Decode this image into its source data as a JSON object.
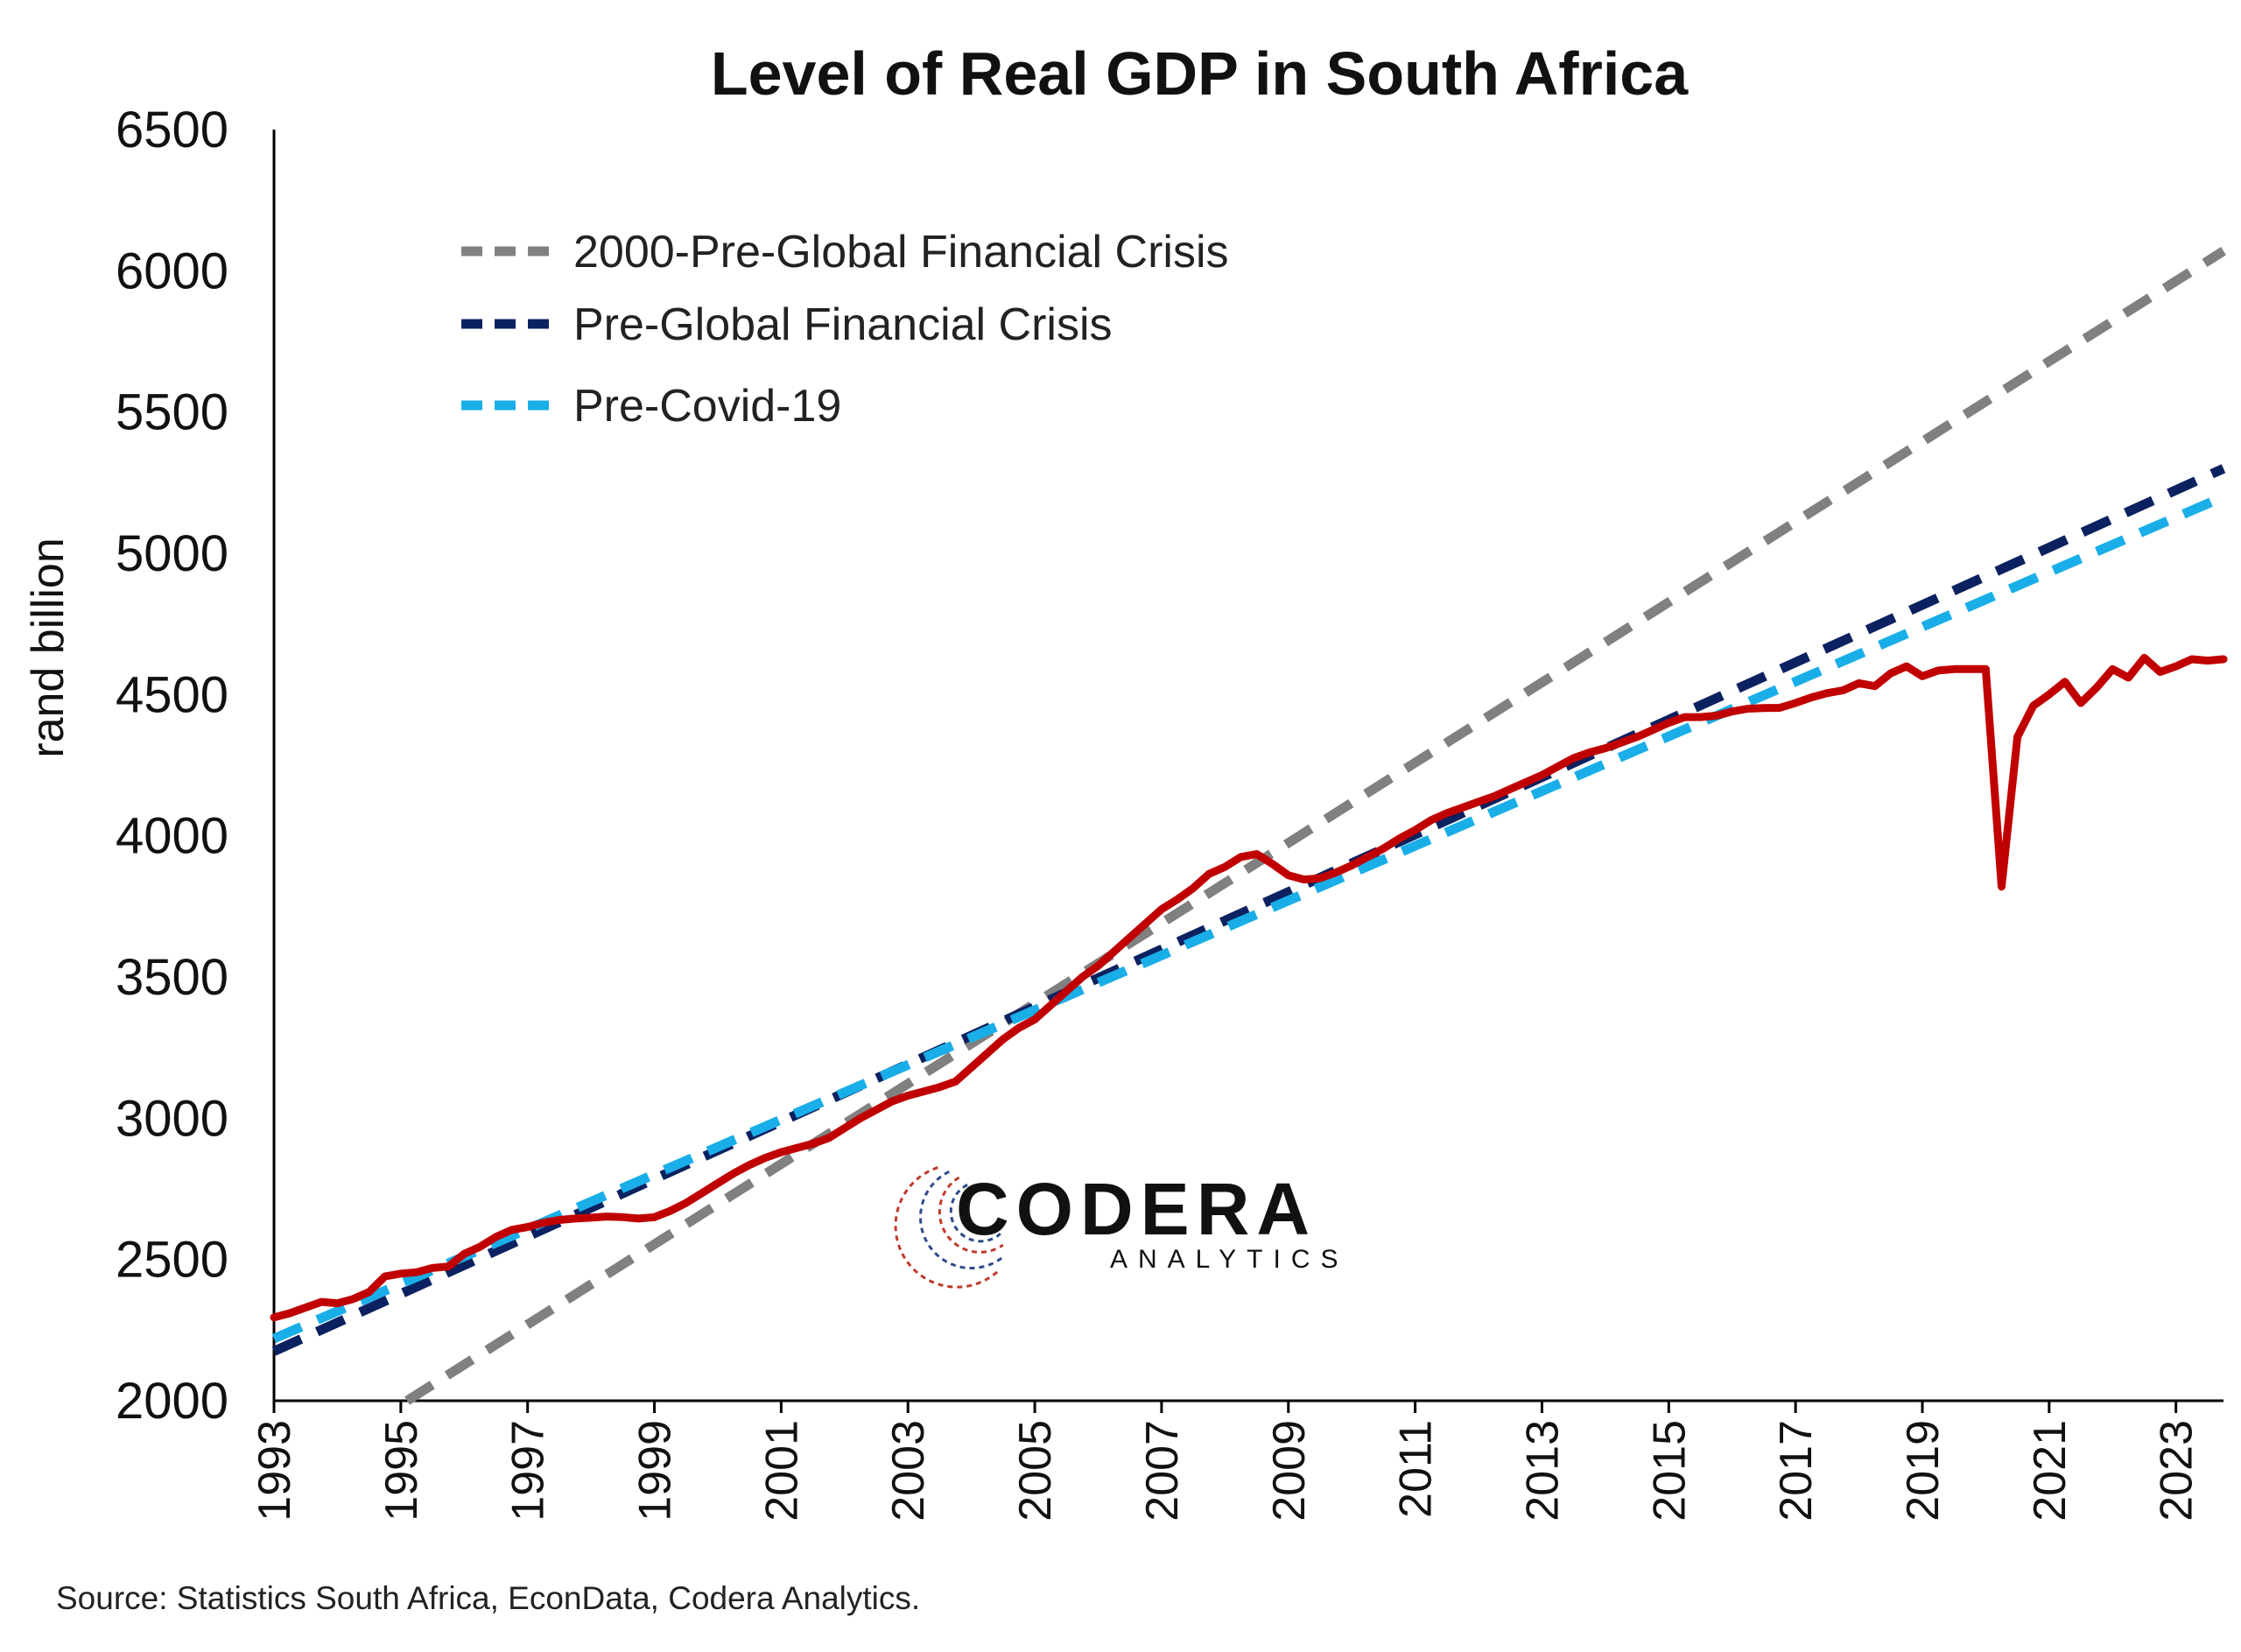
{
  "chart_data": {
    "type": "line",
    "title": "Level of Real GDP in South Africa",
    "xlabel": "",
    "ylabel": "rand billion",
    "xlim": [
      1993.0,
      2023.75
    ],
    "ylim": [
      2000,
      6500
    ],
    "yticks": [
      2000,
      2500,
      3000,
      3500,
      4000,
      4500,
      5000,
      5500,
      6000,
      6500
    ],
    "xticks": [
      "1993",
      "1995",
      "1997",
      "1999",
      "2001",
      "2003",
      "2005",
      "2007",
      "2009",
      "2011",
      "2013",
      "2015",
      "2017",
      "2019",
      "2021",
      "2023"
    ],
    "legend_position": "top-left",
    "grid": false,
    "series": [
      {
        "name": "",
        "style": "solid",
        "color": "#c00000",
        "points": [
          [
            1993.0,
            2295
          ],
          [
            1993.25,
            2310
          ],
          [
            1993.5,
            2330
          ],
          [
            1993.75,
            2350
          ],
          [
            1994.0,
            2345
          ],
          [
            1994.25,
            2360
          ],
          [
            1994.5,
            2385
          ],
          [
            1994.75,
            2440
          ],
          [
            1995.0,
            2450
          ],
          [
            1995.25,
            2455
          ],
          [
            1995.5,
            2470
          ],
          [
            1995.75,
            2475
          ],
          [
            1996.0,
            2520
          ],
          [
            1996.25,
            2545
          ],
          [
            1996.5,
            2580
          ],
          [
            1996.75,
            2605
          ],
          [
            1997.0,
            2615
          ],
          [
            1997.25,
            2630
          ],
          [
            1997.5,
            2640
          ],
          [
            1997.75,
            2645
          ],
          [
            1998.0,
            2648
          ],
          [
            1998.25,
            2652
          ],
          [
            1998.5,
            2650
          ],
          [
            1998.75,
            2645
          ],
          [
            1999.0,
            2650
          ],
          [
            1999.25,
            2672
          ],
          [
            1999.5,
            2700
          ],
          [
            1999.75,
            2735
          ],
          [
            2000.0,
            2770
          ],
          [
            2000.25,
            2805
          ],
          [
            2000.5,
            2835
          ],
          [
            2000.75,
            2860
          ],
          [
            2001.0,
            2880
          ],
          [
            2001.25,
            2895
          ],
          [
            2001.5,
            2910
          ],
          [
            2001.75,
            2930
          ],
          [
            2002.0,
            2965
          ],
          [
            2002.25,
            3000
          ],
          [
            2002.5,
            3030
          ],
          [
            2002.75,
            3060
          ],
          [
            2003.0,
            3080
          ],
          [
            2003.25,
            3095
          ],
          [
            2003.5,
            3110
          ],
          [
            2003.75,
            3130
          ],
          [
            2004.0,
            3180
          ],
          [
            2004.25,
            3230
          ],
          [
            2004.5,
            3280
          ],
          [
            2004.75,
            3320
          ],
          [
            2005.0,
            3350
          ],
          [
            2005.25,
            3400
          ],
          [
            2005.5,
            3450
          ],
          [
            2005.75,
            3500
          ],
          [
            2006.0,
            3540
          ],
          [
            2006.25,
            3590
          ],
          [
            2006.5,
            3640
          ],
          [
            2006.75,
            3690
          ],
          [
            2007.0,
            3740
          ],
          [
            2007.25,
            3775
          ],
          [
            2007.5,
            3815
          ],
          [
            2007.75,
            3865
          ],
          [
            2008.0,
            3890
          ],
          [
            2008.25,
            3925
          ],
          [
            2008.5,
            3935
          ],
          [
            2008.75,
            3900
          ],
          [
            2009.0,
            3860
          ],
          [
            2009.25,
            3845
          ],
          [
            2009.5,
            3850
          ],
          [
            2009.75,
            3870
          ],
          [
            2010.0,
            3895
          ],
          [
            2010.25,
            3925
          ],
          [
            2010.5,
            3955
          ],
          [
            2010.75,
            3990
          ],
          [
            2011.0,
            4020
          ],
          [
            2011.25,
            4055
          ],
          [
            2011.5,
            4080
          ],
          [
            2011.75,
            4100
          ],
          [
            2012.0,
            4120
          ],
          [
            2012.25,
            4140
          ],
          [
            2012.5,
            4165
          ],
          [
            2012.75,
            4190
          ],
          [
            2013.0,
            4215
          ],
          [
            2013.25,
            4245
          ],
          [
            2013.5,
            4275
          ],
          [
            2013.75,
            4295
          ],
          [
            2014.0,
            4310
          ],
          [
            2014.25,
            4330
          ],
          [
            2014.5,
            4350
          ],
          [
            2014.75,
            4375
          ],
          [
            2015.0,
            4400
          ],
          [
            2015.25,
            4420
          ],
          [
            2015.5,
            4420
          ],
          [
            2015.75,
            4425
          ],
          [
            2016.0,
            4440
          ],
          [
            2016.25,
            4450
          ],
          [
            2016.5,
            4452
          ],
          [
            2016.75,
            4453
          ],
          [
            2017.0,
            4470
          ],
          [
            2017.25,
            4490
          ],
          [
            2017.5,
            4505
          ],
          [
            2017.75,
            4515
          ],
          [
            2018.0,
            4540
          ],
          [
            2018.25,
            4530
          ],
          [
            2018.5,
            4575
          ],
          [
            2018.75,
            4600
          ],
          [
            2019.0,
            4565
          ],
          [
            2019.25,
            4585
          ],
          [
            2019.5,
            4590
          ],
          [
            2019.75,
            4590
          ],
          [
            2020.0,
            4590
          ],
          [
            2020.25,
            3820
          ],
          [
            2020.5,
            4350
          ],
          [
            2020.75,
            4460
          ],
          [
            2021.0,
            4500
          ],
          [
            2021.25,
            4545
          ],
          [
            2021.5,
            4470
          ],
          [
            2021.75,
            4525
          ],
          [
            2022.0,
            4590
          ],
          [
            2022.25,
            4560
          ],
          [
            2022.5,
            4630
          ],
          [
            2022.75,
            4580
          ],
          [
            2023.0,
            4600
          ],
          [
            2023.25,
            4625
          ],
          [
            2023.5,
            4620
          ],
          [
            2023.75,
            4625
          ]
        ]
      },
      {
        "name": "2000-Pre-Global Financial Crisis",
        "style": "dashed",
        "color": "#808080",
        "points": [
          [
            1995.1,
            2000
          ],
          [
            2023.75,
            6070
          ]
        ]
      },
      {
        "name": "Pre-Global Financial Crisis",
        "style": "dashed",
        "color": "#0b2160",
        "points": [
          [
            1993.0,
            2175
          ],
          [
            2023.75,
            5300
          ]
        ]
      },
      {
        "name": "Pre-Covid-19",
        "style": "dashed",
        "color": "#1aaee8",
        "points": [
          [
            1993.0,
            2220
          ],
          [
            2023.75,
            5200
          ]
        ]
      }
    ]
  },
  "source_note": "Source: Statistics South Africa, EconData, Codera Analytics.",
  "logo": {
    "name": "CODERA",
    "tagline": "ANALYTICS"
  }
}
